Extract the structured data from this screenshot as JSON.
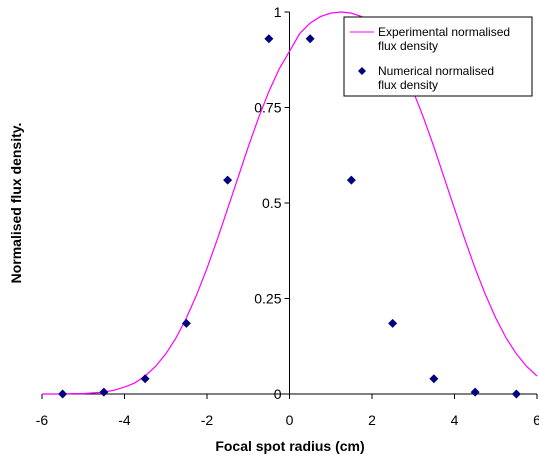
{
  "chart_data": {
    "type": "line",
    "title": "",
    "xlabel": "Focal spot radius (cm)",
    "ylabel": "Normalised flux density.",
    "xlim": [
      -6,
      6
    ],
    "ylim": [
      0,
      1
    ],
    "x_ticks": [
      {
        "value": -6,
        "label": "-6"
      },
      {
        "value": -4,
        "label": "-4"
      },
      {
        "value": -2,
        "label": "-2"
      },
      {
        "value": 0,
        "label": "0"
      },
      {
        "value": 2,
        "label": "2"
      },
      {
        "value": 4,
        "label": "4"
      },
      {
        "value": 6,
        "label": "6"
      }
    ],
    "y_ticks": [
      {
        "value": 0,
        "label": "0"
      },
      {
        "value": 0.25,
        "label": "0.25"
      },
      {
        "value": 0.5,
        "label": "0.5"
      },
      {
        "value": 0.75,
        "label": "0.75"
      },
      {
        "value": 1,
        "label": "1"
      }
    ],
    "grid": false,
    "legend_position": "top-right",
    "series": [
      {
        "name": "Experimental normalised flux density",
        "legend_lines": [
          "Experimental normalised",
          "flux density"
        ],
        "style": "line",
        "color": "#ff00ff",
        "x": [
          -6.0,
          -5.75,
          -5.5,
          -5.25,
          -5.0,
          -4.75,
          -4.5,
          -4.25,
          -4.0,
          -3.75,
          -3.5,
          -3.25,
          -3.0,
          -2.75,
          -2.5,
          -2.25,
          -2.0,
          -1.75,
          -1.5,
          -1.25,
          -1.0,
          -0.75,
          -0.5,
          -0.25,
          0.0,
          0.25,
          0.5,
          0.75,
          1.0,
          1.25,
          1.5,
          1.75,
          2.0,
          2.25,
          2.5,
          2.75,
          3.0,
          3.25,
          3.5,
          3.75,
          4.0,
          4.25,
          4.5,
          4.75,
          5.0,
          5.25,
          5.5,
          5.75,
          6.0
        ],
        "y": [
          0.0,
          0.0,
          0.0,
          0.001,
          0.001,
          0.003,
          0.005,
          0.01,
          0.018,
          0.029,
          0.047,
          0.072,
          0.105,
          0.147,
          0.199,
          0.26,
          0.329,
          0.405,
          0.485,
          0.566,
          0.647,
          0.723,
          0.792,
          0.851,
          0.897,
          0.944,
          0.971,
          0.988,
          0.997,
          1.0,
          0.997,
          0.988,
          0.971,
          0.944,
          0.897,
          0.851,
          0.792,
          0.723,
          0.647,
          0.566,
          0.485,
          0.405,
          0.329,
          0.26,
          0.199,
          0.147,
          0.105,
          0.072,
          0.047
        ]
      },
      {
        "name": "Numerical normalised flux density",
        "legend_lines": [
          "Numerical normalised",
          "flux density"
        ],
        "style": "scatter",
        "marker": "diamond",
        "color": "#000080",
        "x": [
          -5.5,
          -4.5,
          -3.5,
          -2.5,
          -1.5,
          -0.5,
          0.5,
          1.5,
          2.5,
          3.5,
          4.5,
          5.5
        ],
        "y": [
          0.0,
          0.005,
          0.04,
          0.185,
          0.56,
          0.93,
          0.93,
          0.56,
          0.185,
          0.04,
          0.005,
          0.0
        ]
      }
    ]
  }
}
